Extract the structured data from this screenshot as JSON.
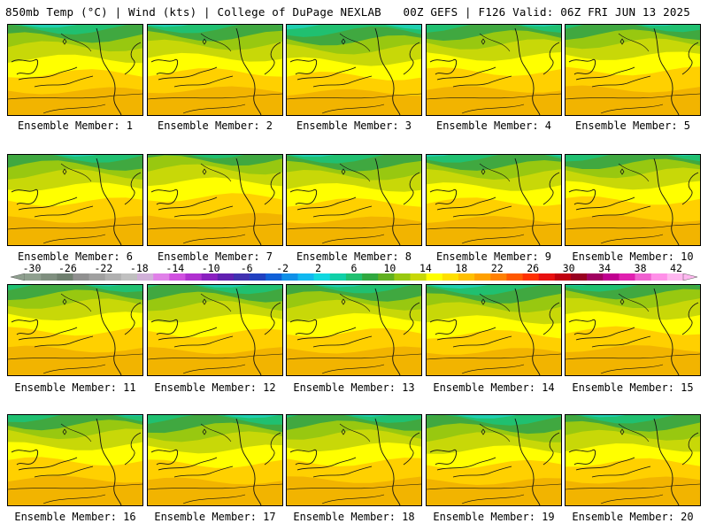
{
  "header": {
    "left": "850mb Temp (°C) | Wind (kts) | College of DuPage NEXLAB",
    "right": "00Z GEFS | F126 Valid: 06Z FRI JUN 13 2025"
  },
  "colorbar": {
    "ticks": [
      "-30",
      "-26",
      "-22",
      "-18",
      "-14",
      "-10",
      "-6",
      "-2",
      "2",
      "6",
      "10",
      "14",
      "18",
      "22",
      "26",
      "30",
      "34",
      "38",
      "42"
    ],
    "colors": [
      "#8fa08f",
      "#7f8f7f",
      "#6f7f6f",
      "#909090",
      "#a0a0a0",
      "#b0b0b0",
      "#c0c0c0",
      "#d0b0d8",
      "#e080e8",
      "#d050e0",
      "#b030d0",
      "#8a20c0",
      "#6020b0",
      "#4030b0",
      "#2040c0",
      "#1060d8",
      "#1090e8",
      "#10b8f0",
      "#10d8e0",
      "#10d0a8",
      "#20c070",
      "#30a840",
      "#60b020",
      "#98c810",
      "#c8d808",
      "#ffff00",
      "#ffe000",
      "#ffc000",
      "#ffa000",
      "#ff8000",
      "#ff5800",
      "#ff3000",
      "#e81010",
      "#c00010",
      "#980020",
      "#a00060",
      "#c00090",
      "#e020b0",
      "#f060d0",
      "#ff90e8",
      "#ffb8f0"
    ]
  },
  "members": [
    {
      "label": "Ensemble Member: 1",
      "id": 1
    },
    {
      "label": "Ensemble Member: 2",
      "id": 2
    },
    {
      "label": "Ensemble Member: 3",
      "id": 3
    },
    {
      "label": "Ensemble Member: 4",
      "id": 4
    },
    {
      "label": "Ensemble Member: 5",
      "id": 5
    },
    {
      "label": "Ensemble Member: 6",
      "id": 6
    },
    {
      "label": "Ensemble Member: 7",
      "id": 7
    },
    {
      "label": "Ensemble Member: 8",
      "id": 8
    },
    {
      "label": "Ensemble Member: 9",
      "id": 9
    },
    {
      "label": "Ensemble Member: 10",
      "id": 10
    },
    {
      "label": "Ensemble Member: 11",
      "id": 11
    },
    {
      "label": "Ensemble Member: 12",
      "id": 12
    },
    {
      "label": "Ensemble Member: 13",
      "id": 13
    },
    {
      "label": "Ensemble Member: 14",
      "id": 14
    },
    {
      "label": "Ensemble Member: 15",
      "id": 15
    },
    {
      "label": "Ensemble Member: 16",
      "id": 16
    },
    {
      "label": "Ensemble Member: 17",
      "id": 17
    },
    {
      "label": "Ensemble Member: 18",
      "id": 18
    },
    {
      "label": "Ensemble Member: 19",
      "id": 19
    },
    {
      "label": "Ensemble Member: 20",
      "id": 20
    }
  ]
}
